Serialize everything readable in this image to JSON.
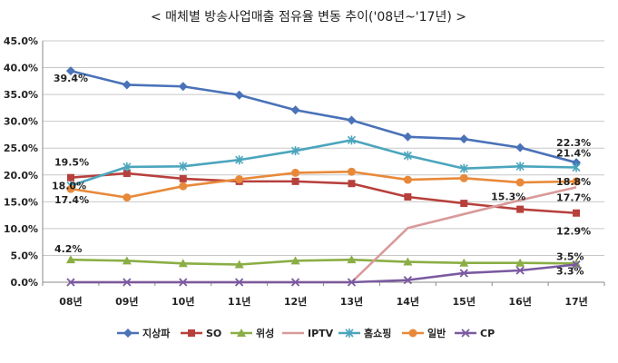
{
  "chart_data": {
    "type": "line",
    "title": "< 매체별 방송사업매출 점유율 변동 추이('08년~'17년) >",
    "categories": [
      "08년",
      "09년",
      "10년",
      "11년",
      "12년",
      "13년",
      "14년",
      "15년",
      "16년",
      "17년"
    ],
    "ylim": [
      0,
      45
    ],
    "yticks": [
      "0.0%",
      "5.0%",
      "10.0%",
      "15.0%",
      "20.0%",
      "25.0%",
      "30.0%",
      "35.0%",
      "40.0%",
      "45.0%"
    ],
    "grid": "horizontal",
    "legend_position": "bottom",
    "series": [
      {
        "name": "지상파",
        "color": "#4a72b8",
        "marker": "diamond",
        "values": [
          39.4,
          36.8,
          36.5,
          34.9,
          32.1,
          30.2,
          27.1,
          26.7,
          25.1,
          22.3
        ]
      },
      {
        "name": "SO",
        "color": "#b7403c",
        "marker": "square",
        "values": [
          19.5,
          20.3,
          19.3,
          18.8,
          18.8,
          18.4,
          15.9,
          14.7,
          13.6,
          12.9
        ]
      },
      {
        "name": "위성",
        "color": "#8aae45",
        "marker": "triangle",
        "values": [
          4.2,
          4.0,
          3.5,
          3.3,
          4.0,
          4.2,
          3.8,
          3.6,
          3.6,
          3.5
        ]
      },
      {
        "name": "IPTV",
        "color": "#d99a9a",
        "marker": "none",
        "values": [
          0,
          0,
          0,
          0,
          0,
          0,
          10.1,
          12.7,
          15.3,
          17.7
        ]
      },
      {
        "name": "홈쇼핑",
        "color": "#4ba5bd",
        "marker": "asterisk",
        "values": [
          18.0,
          21.5,
          21.6,
          22.8,
          24.5,
          26.5,
          23.6,
          21.2,
          21.6,
          21.4
        ]
      },
      {
        "name": "일반",
        "color": "#e8893a",
        "marker": "circle",
        "values": [
          17.4,
          15.8,
          17.9,
          19.2,
          20.4,
          20.6,
          19.1,
          19.4,
          18.6,
          18.8
        ]
      },
      {
        "name": "CP",
        "color": "#7a5aa0",
        "marker": "x",
        "values": [
          0,
          0,
          0,
          0,
          0,
          0,
          0.4,
          1.7,
          2.2,
          3.3
        ]
      }
    ],
    "annotations": [
      {
        "text": "39.4%",
        "series": 0,
        "point": 0
      },
      {
        "text": "19.5%",
        "series": 1,
        "point": 0
      },
      {
        "text": "18.0%",
        "series": 4,
        "point": 0
      },
      {
        "text": "17.4%",
        "series": 5,
        "point": 0
      },
      {
        "text": "4.2%",
        "series": 2,
        "point": 0
      },
      {
        "text": "22.3%",
        "series": 0,
        "point": 9
      },
      {
        "text": "21.4%",
        "series": 4,
        "point": 9
      },
      {
        "text": "18.8%",
        "series": 5,
        "point": 9
      },
      {
        "text": "17.7%",
        "series": 3,
        "point": 9
      },
      {
        "text": "15.3%",
        "series": 3,
        "point": 8
      },
      {
        "text": "12.9%",
        "series": 1,
        "point": 9
      },
      {
        "text": "3.5%",
        "series": 2,
        "point": 9
      },
      {
        "text": "3.3%",
        "series": 6,
        "point": 9
      }
    ]
  }
}
